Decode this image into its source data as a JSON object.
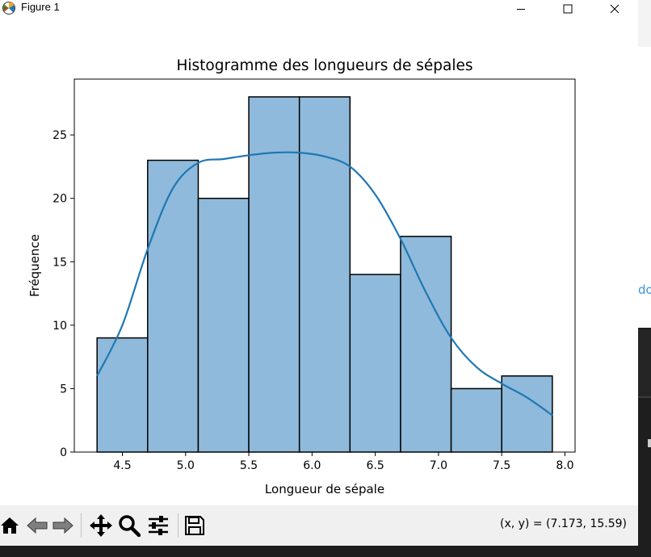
{
  "window": {
    "title": "Figure 1",
    "controls": [
      "minimize",
      "maximize",
      "close"
    ]
  },
  "chart_data": {
    "type": "bar",
    "title": "Histogramme des longueurs de sépales",
    "xlabel": "Longueur de sépale",
    "ylabel": "Fréquence",
    "bin_edges": [
      4.3,
      4.7,
      5.1,
      5.5,
      5.9,
      6.3,
      6.7,
      7.1,
      7.5,
      7.9
    ],
    "values": [
      9,
      23,
      20,
      28,
      28,
      14,
      17,
      5,
      6
    ],
    "xticks": [
      "4.5",
      "5.0",
      "5.5",
      "6.0",
      "6.5",
      "7.0",
      "7.5",
      "8.0"
    ],
    "yticks": [
      "0",
      "5",
      "10",
      "15",
      "20",
      "25"
    ],
    "xlim": [
      4.12,
      8.08
    ],
    "ylim": [
      0,
      29.4
    ],
    "bar_color": "#8fbadb",
    "edge_color": "#000000",
    "kde": {
      "color": "#1f77b4",
      "x": [
        4.3,
        4.5,
        4.7,
        4.9,
        5.1,
        5.3,
        5.5,
        5.7,
        5.9,
        6.1,
        6.3,
        6.5,
        6.7,
        6.9,
        7.1,
        7.3,
        7.5,
        7.7,
        7.9
      ],
      "y": [
        6.0,
        10.0,
        16.0,
        20.8,
        22.8,
        23.1,
        23.4,
        23.6,
        23.6,
        23.3,
        22.5,
        20.3,
        16.8,
        12.6,
        9.0,
        6.7,
        5.4,
        4.3,
        2.9
      ]
    },
    "grid": false
  },
  "toolbar": {
    "buttons": [
      "home-icon",
      "back-icon",
      "forward-icon",
      "pan-icon",
      "zoom-icon",
      "configure-subplots-icon",
      "save-icon"
    ],
    "coords": "(x, y) = (7.173, 15.59)"
  },
  "background": {
    "fragment_text": "do"
  },
  "colors": {
    "accent": "#1f77b4",
    "toolbar_bg": "#f0f0f0",
    "bg_dark": "#1e1e1e"
  }
}
